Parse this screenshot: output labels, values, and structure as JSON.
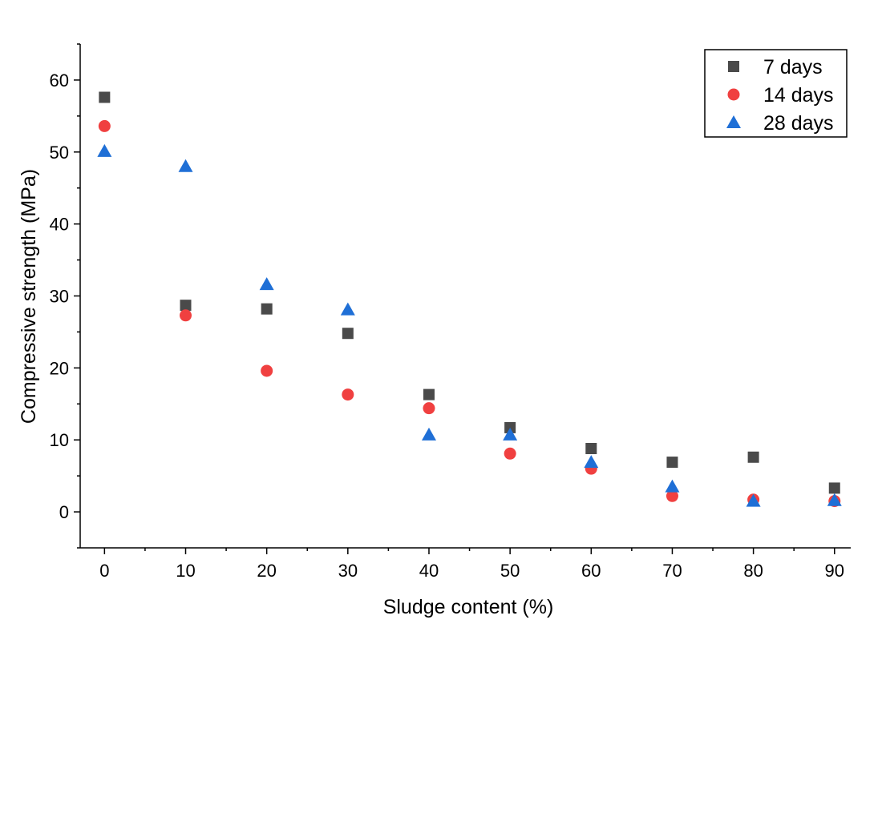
{
  "chart_data": {
    "type": "scatter",
    "title": "",
    "xlabel": "Sludge content (%)",
    "ylabel": "Compressive strength (MPa)",
    "xlim": [
      -3,
      92
    ],
    "ylim": [
      -5,
      65
    ],
    "xticks": [
      0,
      10,
      20,
      30,
      40,
      50,
      60,
      70,
      80,
      90
    ],
    "yticks": [
      0,
      10,
      20,
      30,
      40,
      50,
      60
    ],
    "grid": false,
    "legend_position": "top-right",
    "x": [
      0,
      10,
      20,
      30,
      40,
      50,
      60,
      70,
      80,
      90
    ],
    "series": [
      {
        "name": "7 days",
        "marker": "square",
        "color": "#4a4a4a",
        "values": [
          57.6,
          28.7,
          28.2,
          24.8,
          16.3,
          11.7,
          8.8,
          6.9,
          7.6,
          3.3
        ]
      },
      {
        "name": "14 days",
        "marker": "circle",
        "color": "#f04040",
        "values": [
          53.6,
          27.3,
          19.6,
          16.3,
          14.4,
          8.1,
          6.0,
          2.2,
          1.7,
          1.5
        ]
      },
      {
        "name": "28 days",
        "marker": "triangle",
        "color": "#1f6fd6",
        "values": [
          50.1,
          48.0,
          31.6,
          28.1,
          10.7,
          10.7,
          6.9,
          3.5,
          1.5,
          1.6
        ]
      }
    ]
  }
}
